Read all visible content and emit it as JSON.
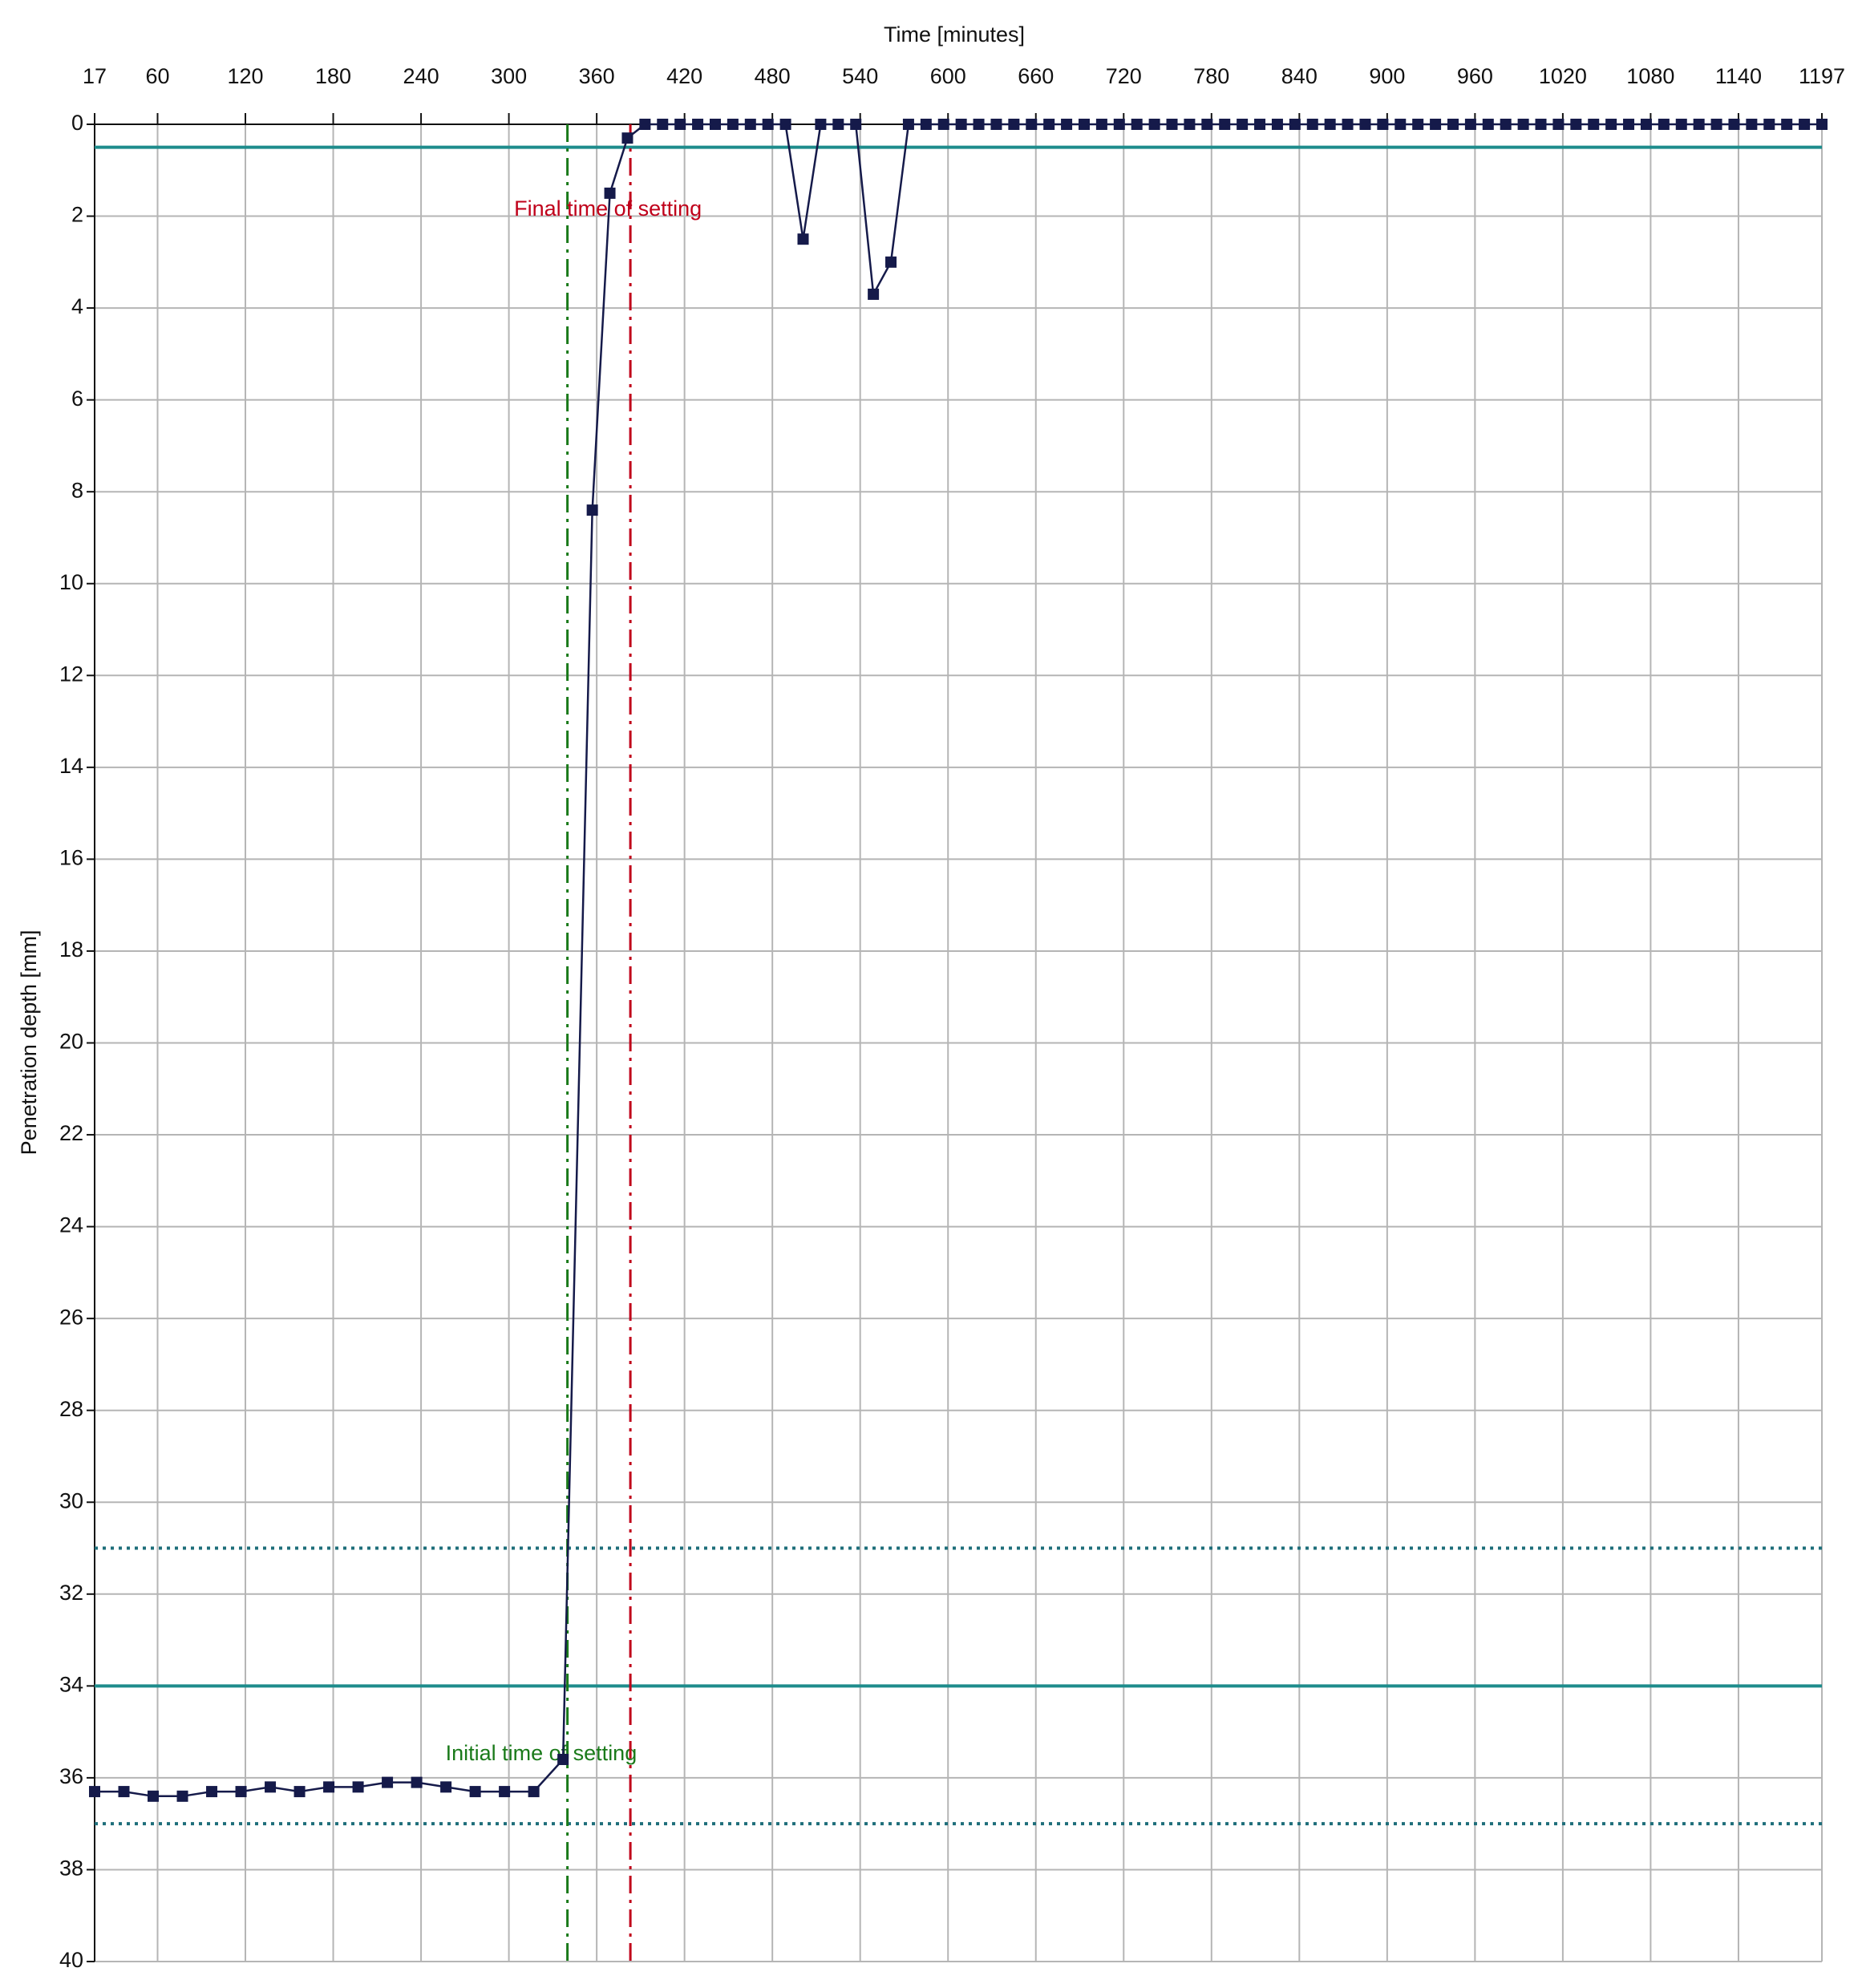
{
  "chart_data": {
    "type": "line",
    "title": "Time [minutes]",
    "y_label": "Penetration depth [mm]",
    "x": [
      17,
      37,
      57,
      77,
      97,
      117,
      137,
      157,
      177,
      197,
      217,
      237,
      257,
      277,
      297,
      317,
      337,
      357,
      369,
      381,
      393,
      405,
      417,
      429,
      441,
      453,
      465,
      477,
      489,
      501,
      513,
      525,
      537,
      549,
      561,
      573,
      585,
      597,
      609,
      621,
      633,
      645,
      657,
      669,
      681,
      693,
      705,
      717,
      729,
      741,
      753,
      765,
      777,
      789,
      801,
      813,
      825,
      837,
      849,
      861,
      873,
      885,
      897,
      909,
      921,
      933,
      945,
      957,
      969,
      981,
      993,
      1005,
      1017,
      1029,
      1041,
      1053,
      1065,
      1077,
      1089,
      1101,
      1113,
      1125,
      1137,
      1149,
      1161,
      1173,
      1185,
      1197
    ],
    "values": [
      36.3,
      36.3,
      36.4,
      36.4,
      36.3,
      36.3,
      36.2,
      36.3,
      36.2,
      36.2,
      36.1,
      36.1,
      36.2,
      36.3,
      36.3,
      36.3,
      35.6,
      8.4,
      1.5,
      0.3,
      0,
      0,
      0,
      0,
      0,
      0,
      0,
      0,
      0,
      2.5,
      0,
      0,
      0,
      3.7,
      3.0,
      0,
      0,
      0,
      0,
      0,
      0,
      0,
      0,
      0,
      0,
      0,
      0,
      0,
      0,
      0,
      0,
      0,
      0,
      0,
      0,
      0,
      0,
      0,
      0,
      0,
      0,
      0,
      0,
      0,
      0,
      0,
      0,
      0,
      0,
      0,
      0,
      0,
      0,
      0,
      0,
      0,
      0,
      0,
      0,
      0,
      0,
      0,
      0,
      0,
      0,
      0,
      0,
      0
    ],
    "color": "#151a4a",
    "xlim": [
      17,
      1197
    ],
    "xticks": [
      17,
      60,
      120,
      180,
      240,
      300,
      360,
      420,
      480,
      540,
      600,
      660,
      720,
      780,
      840,
      900,
      960,
      1020,
      1080,
      1140,
      1197
    ],
    "ylim": [
      0,
      40
    ],
    "yticks": [
      0,
      2,
      4,
      6,
      8,
      10,
      12,
      14,
      16,
      18,
      20,
      22,
      24,
      26,
      28,
      30,
      32,
      34,
      36,
      38,
      40
    ],
    "y_inverted": true,
    "x_axis_position": "top",
    "grid": true,
    "hlines": [
      {
        "value": 0.5,
        "style": "solid",
        "color": "#1e8c8c"
      },
      {
        "value": 34,
        "style": "solid",
        "color": "#1e8c8c"
      },
      {
        "value": 31,
        "style": "dotted",
        "color": "#1e6e7a"
      },
      {
        "value": 37,
        "style": "dotted",
        "color": "#1e6e7a"
      }
    ],
    "vlines": [
      {
        "value": 340,
        "label": "Initial time of setting",
        "color": "#1a7a1a"
      },
      {
        "value": 383,
        "label": "Final time of setting",
        "color": "#c0001a"
      }
    ]
  }
}
